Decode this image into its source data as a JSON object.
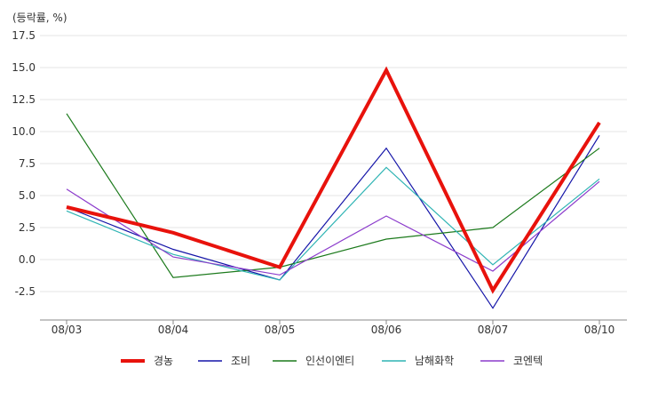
{
  "chart_data": {
    "type": "line",
    "unit_label": "(등락률, %)",
    "categories": [
      "08/03",
      "08/04",
      "08/05",
      "08/06",
      "08/07",
      "08/10"
    ],
    "y_ticks": [
      "17.5",
      "15.0",
      "12.5",
      "10.0",
      "7.5",
      "5.0",
      "2.5",
      "0.0",
      "-2.5"
    ],
    "ylim": [
      -4.5,
      17.5
    ],
    "grid": true,
    "legend_position": "bottom",
    "series": [
      {
        "name": "경농",
        "color": "#e8120c",
        "values": [
          4.1,
          2.1,
          -0.6,
          14.8,
          -2.4,
          10.7
        ]
      },
      {
        "name": "조비",
        "color": "#1414a8",
        "values": [
          4.1,
          0.8,
          -1.6,
          8.7,
          -3.8,
          9.7
        ]
      },
      {
        "name": "인선이엔티",
        "color": "#1c7a1c",
        "values": [
          11.4,
          -1.4,
          -0.6,
          1.6,
          2.5,
          8.7
        ]
      },
      {
        "name": "남해화학",
        "color": "#2fb4b4",
        "values": [
          3.8,
          0.4,
          -1.6,
          7.2,
          -0.4,
          6.3
        ]
      },
      {
        "name": "코엔텍",
        "color": "#8c3ccc",
        "values": [
          5.5,
          0.2,
          -1.2,
          3.4,
          -0.9,
          6.1
        ]
      }
    ]
  }
}
